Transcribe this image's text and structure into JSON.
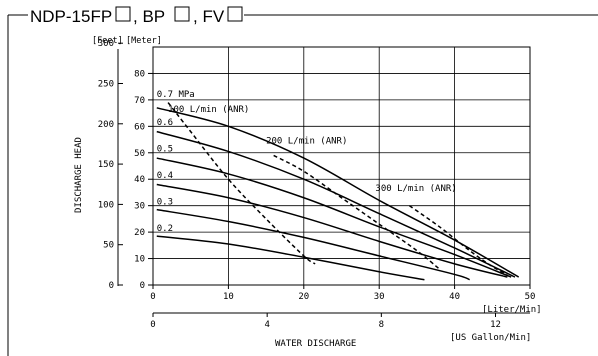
{
  "chart_data": {
    "type": "line",
    "title_parts": {
      "model": "NDP-15FP",
      "sep1": ", BP",
      "sep2": ", FV"
    },
    "ylabel": "DISCHARGE HEAD",
    "xlabel": "WATER DISCHARGE",
    "y_units_left": "[Feet]",
    "y_units_right": "[Meter]",
    "x_units_top": "[Liter/Min]",
    "x_units_bottom": "[US Gallon/Min]",
    "x_lim": [
      0,
      50
    ],
    "y_meter_lim": [
      0,
      90
    ],
    "x_ticks_liter": [
      "0",
      "10",
      "20",
      "30",
      "40",
      "50"
    ],
    "x_ticks_liter_values": [
      0,
      10,
      20,
      30,
      40,
      50
    ],
    "x_ticks_gal": [
      "0",
      "4",
      "8",
      "12"
    ],
    "x_ticks_gal_values": [
      0,
      4,
      8,
      12
    ],
    "y_ticks_meter": [
      "0",
      "10",
      "20",
      "30",
      "40",
      "50",
      "60",
      "70",
      "80"
    ],
    "y_ticks_meter_values": [
      0,
      10,
      20,
      30,
      40,
      50,
      60,
      70,
      80
    ],
    "y_ticks_feet": [
      "0",
      "50",
      "100",
      "150",
      "200",
      "250",
      "300"
    ],
    "y_ticks_feet_values": [
      0,
      50,
      100,
      150,
      200,
      250,
      300
    ],
    "grid": true,
    "series": [
      {
        "name": "0.7 MPa",
        "points": [
          [
            0.5,
            67
          ],
          [
            10,
            60
          ],
          [
            20,
            48
          ],
          [
            30,
            32
          ],
          [
            40,
            17
          ],
          [
            48.5,
            3
          ]
        ]
      },
      {
        "name": "0.6",
        "points": [
          [
            0.5,
            58
          ],
          [
            10,
            50.5
          ],
          [
            20,
            40
          ],
          [
            30,
            27
          ],
          [
            40,
            14
          ],
          [
            48,
            3
          ]
        ]
      },
      {
        "name": "0.5",
        "points": [
          [
            0.5,
            48
          ],
          [
            10,
            42
          ],
          [
            20,
            33
          ],
          [
            30,
            22
          ],
          [
            40,
            11.5
          ],
          [
            47.5,
            3
          ]
        ]
      },
      {
        "name": "0.4",
        "points": [
          [
            0.5,
            38
          ],
          [
            10,
            33
          ],
          [
            20,
            25.5
          ],
          [
            30,
            16.5
          ],
          [
            40,
            8
          ],
          [
            47,
            3
          ]
        ]
      },
      {
        "name": "0.3",
        "points": [
          [
            0.5,
            28.5
          ],
          [
            10,
            24
          ],
          [
            20,
            18
          ],
          [
            30,
            11
          ],
          [
            40,
            4
          ],
          [
            42,
            2
          ]
        ]
      },
      {
        "name": "0.2",
        "points": [
          [
            0.5,
            18.5
          ],
          [
            10,
            15.5
          ],
          [
            20,
            10.5
          ],
          [
            30,
            5
          ],
          [
            36,
            2
          ]
        ]
      }
    ],
    "air_consumption_lines": [
      {
        "name": "100 L/min (ANR)",
        "points": [
          [
            2,
            69
          ],
          [
            5,
            58
          ],
          [
            10,
            40
          ],
          [
            15,
            25
          ],
          [
            20,
            11
          ],
          [
            21.5,
            8
          ]
        ]
      },
      {
        "name": "200 L/min (ANR)",
        "points": [
          [
            16,
            49
          ],
          [
            20,
            43
          ],
          [
            25,
            33
          ],
          [
            30,
            23
          ],
          [
            35,
            13
          ],
          [
            38,
            6
          ]
        ]
      },
      {
        "name": "300 L/min (ANR)",
        "points": [
          [
            34,
            30
          ],
          [
            38,
            22
          ],
          [
            42,
            13
          ],
          [
            45,
            7
          ],
          [
            47,
            4
          ]
        ]
      }
    ],
    "curve_labels": [
      {
        "text": "0.7 MPa",
        "x": 0.5,
        "y": 71
      },
      {
        "text": "0.6",
        "x": 0.5,
        "y": 60.5
      },
      {
        "text": "0.5",
        "x": 0.5,
        "y": 50.5
      },
      {
        "text": "0.4",
        "x": 0.5,
        "y": 40.5
      },
      {
        "text": "0.3",
        "x": 0.5,
        "y": 30.5
      },
      {
        "text": "0.2",
        "x": 0.5,
        "y": 20.5
      },
      {
        "text": "100 L/min (ANR)",
        "x": 2,
        "y": 65.5
      },
      {
        "text": "200 L/min (ANR)",
        "x": 15,
        "y": 53.5
      },
      {
        "text": "300 L/min (ANR)",
        "x": 29.5,
        "y": 35.5
      }
    ]
  }
}
